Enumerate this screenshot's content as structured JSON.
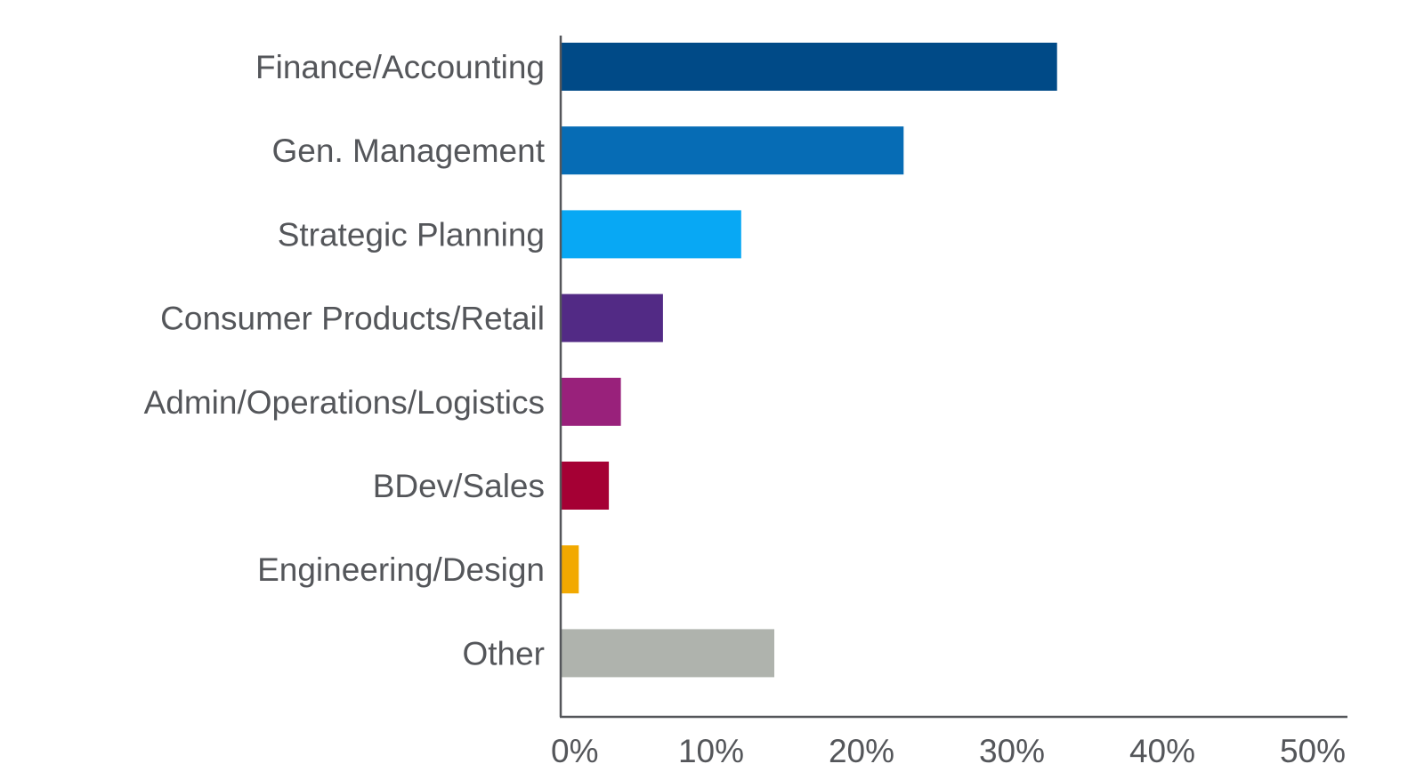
{
  "chart_data": {
    "type": "bar",
    "orientation": "horizontal",
    "title": "",
    "xlabel": "",
    "ylabel": "",
    "xlim": [
      0,
      52
    ],
    "ticks": [
      0,
      10,
      20,
      30,
      40,
      50
    ],
    "tick_labels": [
      "0%",
      "10%",
      "20%",
      "30%",
      "40%",
      "50%"
    ],
    "grid": false,
    "categories": [
      "Finance/Accounting",
      "Gen. Management",
      "Strategic Planning",
      "Consumer Products/Retail",
      "Admin/Operations/Logistics",
      "BDev/Sales",
      "Engineering/Design",
      "Other"
    ],
    "values": [
      33,
      22.8,
      12,
      6.8,
      4,
      3.2,
      1.2,
      14.2
    ],
    "colors": [
      "#004a87",
      "#066cb5",
      "#08a8f4",
      "#522a85",
      "#99217b",
      "#a50034",
      "#f2a900",
      "#afb3ad"
    ]
  }
}
